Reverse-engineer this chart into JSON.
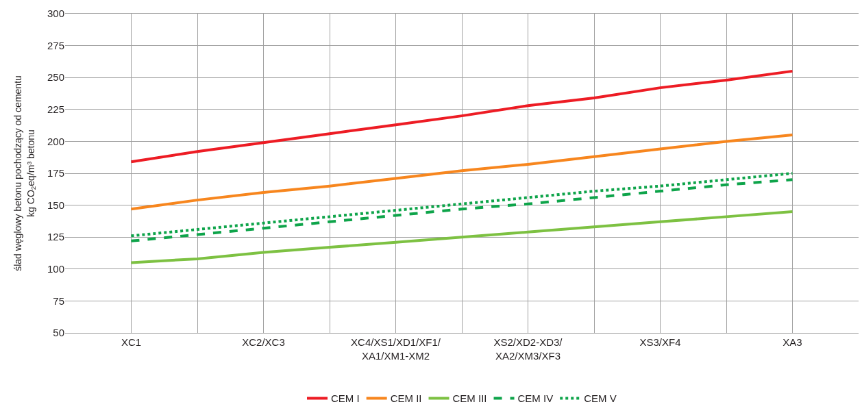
{
  "chart_data": {
    "type": "line",
    "ylabel": "ślad węglowy betonu pochodzący od cementu\nkg CO$_{2}$eq/m³ betonu",
    "categories": [
      "XC1",
      null,
      "XC2/XC3",
      null,
      "XC4/XS1/XD1/XF1/\nXA1/XM1-XM2",
      null,
      "XS2/XD2-XD3/\nXA2/XM3/XF3",
      null,
      "XS3/XF4",
      null,
      "XA3"
    ],
    "series": [
      {
        "name": "CEM I",
        "color": "#ed1c24",
        "line_style": "solid",
        "values": [
          184,
          192,
          199,
          206,
          213,
          220,
          228,
          234,
          242,
          248,
          255
        ]
      },
      {
        "name": "CEM II",
        "color": "#f7861e",
        "line_style": "solid",
        "values": [
          147,
          154,
          160,
          165,
          171,
          177,
          182,
          188,
          194,
          200,
          205
        ]
      },
      {
        "name": "CEM III",
        "color": "#7dc142",
        "line_style": "solid",
        "values": [
          105,
          108,
          113,
          117,
          121,
          125,
          129,
          133,
          137,
          141,
          145
        ]
      },
      {
        "name": "CEM IV",
        "color": "#0ea44a",
        "line_style": "dashed",
        "values": [
          122,
          127,
          132,
          137,
          142,
          147,
          151,
          156,
          161,
          166,
          170
        ]
      },
      {
        "name": "CEM V",
        "color": "#0ea44a",
        "line_style": "dotted",
        "values": [
          126,
          131,
          136,
          141,
          146,
          151,
          156,
          161,
          165,
          170,
          175
        ]
      }
    ],
    "ylim": [
      50,
      300
    ],
    "yticks": [
      50,
      75,
      100,
      125,
      150,
      175,
      200,
      225,
      250,
      275,
      300
    ],
    "grid": true,
    "legend": "bottom",
    "marker": "none"
  }
}
